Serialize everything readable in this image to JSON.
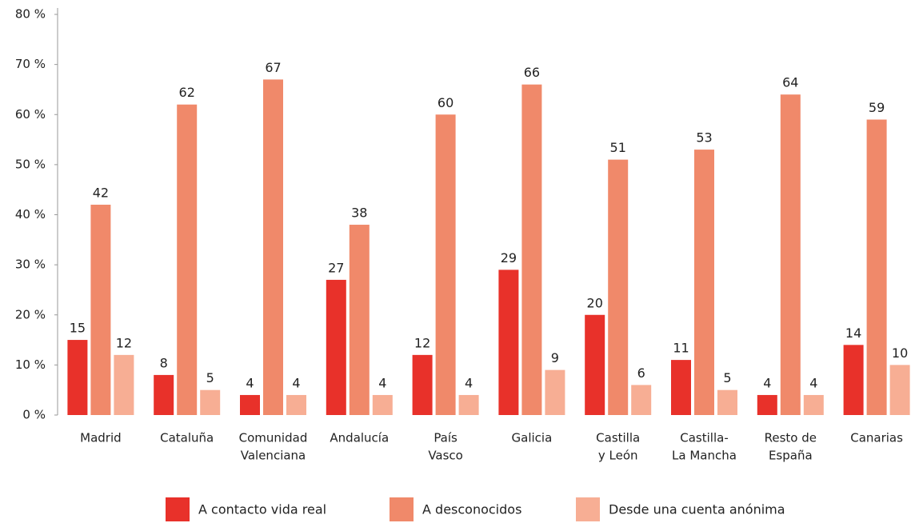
{
  "chart_data": {
    "type": "bar",
    "categories": [
      [
        "Madrid"
      ],
      [
        "Cataluña"
      ],
      [
        "Comunidad",
        "Valenciana"
      ],
      [
        "Andalucía"
      ],
      [
        "País",
        "Vasco"
      ],
      [
        "Galicia"
      ],
      [
        "Castilla",
        "y León"
      ],
      [
        "Castilla-",
        "La Mancha"
      ],
      [
        "Resto de",
        "España"
      ],
      [
        "Canarias"
      ]
    ],
    "series": [
      {
        "name": "A contacto vida real",
        "color": "#e8312a",
        "values": [
          15,
          8,
          4,
          27,
          12,
          29,
          20,
          11,
          4,
          14
        ]
      },
      {
        "name": "A desconocidos",
        "color": "#f0896a",
        "values": [
          42,
          62,
          67,
          38,
          60,
          66,
          51,
          53,
          64,
          59
        ]
      },
      {
        "name": "Desde una cuenta anónima",
        "color": "#f7ae94",
        "values": [
          12,
          5,
          4,
          4,
          4,
          9,
          6,
          5,
          4,
          10
        ]
      }
    ],
    "ylim": [
      0,
      80
    ],
    "yticks": [
      {
        "value": 0,
        "label": "0 %"
      },
      {
        "value": 10,
        "label": "10 %"
      },
      {
        "value": 20,
        "label": "20 %"
      },
      {
        "value": 30,
        "label": "30 %"
      },
      {
        "value": 40,
        "label": "40 %"
      },
      {
        "value": 50,
        "label": "50 %"
      },
      {
        "value": 60,
        "label": "60 %"
      },
      {
        "value": 70,
        "label": "70 %"
      },
      {
        "value": 80,
        "label": "80 %"
      }
    ],
    "legend": "bottom"
  }
}
